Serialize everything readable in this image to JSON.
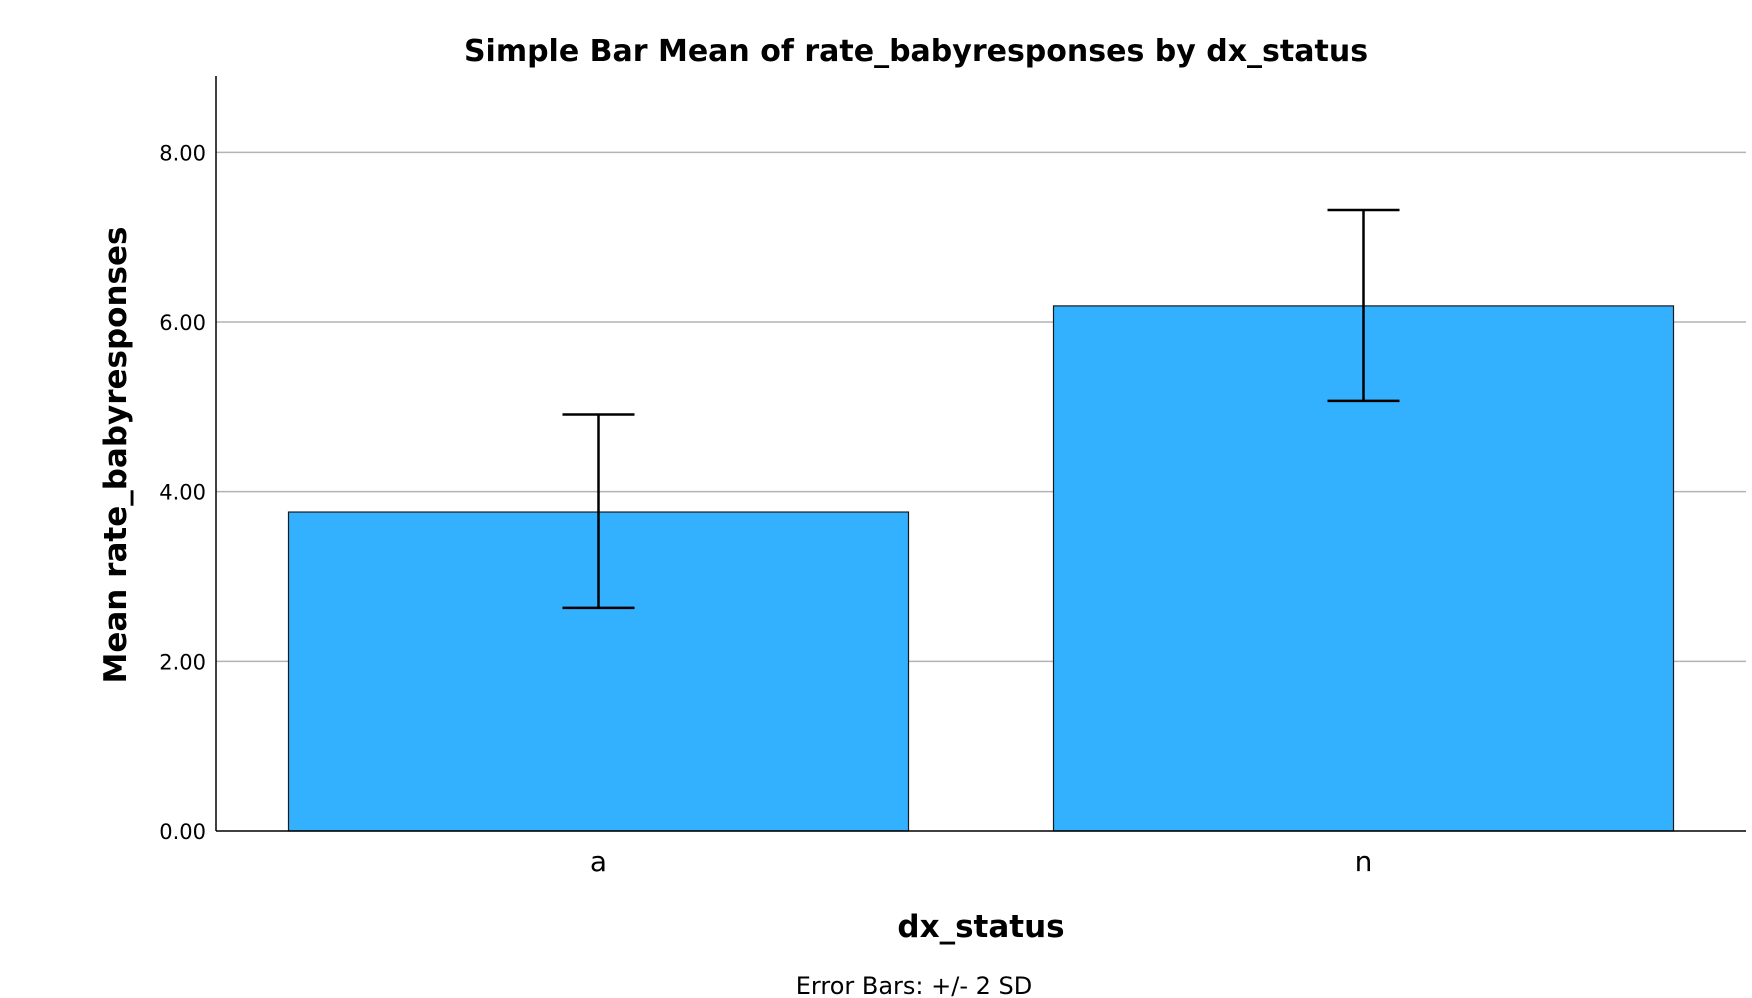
{
  "chart_data": {
    "type": "bar",
    "title": "Simple Bar Mean of rate_babyresponses by dx_status",
    "xlabel": "dx_status",
    "ylabel": "Mean rate_babyresponses",
    "categories": [
      "a",
      "n"
    ],
    "values": [
      3.76,
      6.19
    ],
    "error_bars": [
      {
        "low": 2.63,
        "high": 4.91
      },
      {
        "low": 5.07,
        "high": 7.32
      }
    ],
    "error_bar_note": "Error Bars: +/- 2 SD",
    "ylim": [
      0,
      8.9
    ],
    "yticks": [
      0,
      2,
      4,
      6,
      8
    ],
    "ytick_labels": [
      "0.00",
      "2.00",
      "4.00",
      "6.00",
      "8.00"
    ],
    "grid": "horizontal",
    "legend": "none",
    "colors": {
      "bar_fill": "#33b1ff",
      "bar_stroke": "#1a1a1a",
      "grid": "#b3b3b3",
      "axis": "#000000"
    }
  }
}
